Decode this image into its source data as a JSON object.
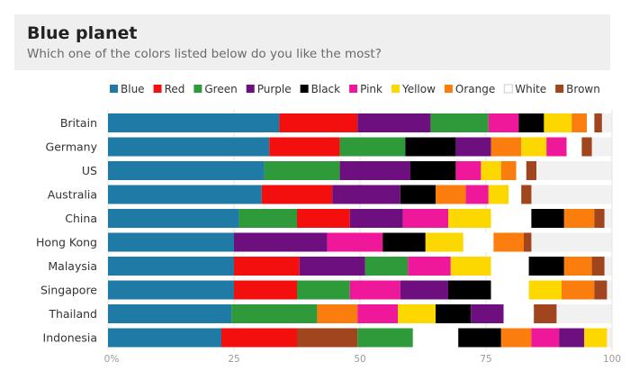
{
  "header": {
    "title": "Blue planet",
    "subtitle": "Which one of the colors listed below do you like the most?"
  },
  "chart_data": {
    "type": "bar",
    "orientation": "horizontal",
    "stacked": true,
    "title": "Blue planet",
    "subtitle": "Which one of the colors listed below do you like the most?",
    "xlabel": "",
    "ylabel": "",
    "xlim": [
      0,
      100
    ],
    "x_ticks": [
      "0%",
      "25",
      "50",
      "75",
      "100"
    ],
    "grid": true,
    "legend_position": "top-left",
    "categories": [
      "Britain",
      "Germany",
      "US",
      "Australia",
      "China",
      "Hong Kong",
      "Malaysia",
      "Singapore",
      "Thailand",
      "Indonesia"
    ],
    "series": [
      {
        "name": "Blue",
        "color": "#1f7ba5",
        "values": [
          34,
          32,
          31,
          30.5,
          26,
          25,
          25,
          25,
          24.5,
          22.5
        ]
      },
      {
        "name": "Red",
        "color": "#f40f0f",
        "values": [
          15.5,
          14,
          0,
          14,
          10.5,
          0,
          13,
          12.5,
          0,
          15
        ]
      },
      {
        "name": "Green",
        "color": "#2f9a3a",
        "values": [
          11.5,
          13,
          15,
          0,
          11.5,
          0,
          8.5,
          10.5,
          17,
          11
        ]
      },
      {
        "name": "Purple",
        "color": "#6d0f7f",
        "values": [
          14.5,
          7,
          14,
          13.5,
          10.5,
          18.5,
          13,
          9.5,
          6.5,
          5
        ]
      },
      {
        "name": "Black",
        "color": "#000000",
        "values": [
          5,
          10,
          9,
          7,
          6.5,
          8.5,
          7,
          8.5,
          7,
          8.5
        ]
      },
      {
        "name": "Pink",
        "color": "#f0189a",
        "values": [
          6,
          4,
          5,
          4.5,
          9,
          11,
          8.5,
          10,
          8,
          5.5
        ]
      },
      {
        "name": "Yellow",
        "color": "#fcd700",
        "values": [
          5.5,
          5,
          4,
          4,
          8.5,
          7.5,
          8,
          6.5,
          7.5,
          4.5
        ]
      },
      {
        "name": "Orange",
        "color": "#fb7d0e",
        "values": [
          3,
          6,
          3,
          6,
          6,
          6,
          5.5,
          6.5,
          8,
          6
        ]
      },
      {
        "name": "White",
        "color": "#ffffff",
        "values": [
          1.5,
          3,
          2,
          2.5,
          8,
          6,
          7.5,
          7.5,
          6,
          9
        ]
      },
      {
        "name": "Brown",
        "color": "#a0451d",
        "values": [
          1.5,
          2,
          2,
          2,
          2,
          1.5,
          2.5,
          2.5,
          4.5,
          12
        ]
      }
    ],
    "segment_order": [
      [
        "Blue",
        "Red",
        "Purple",
        "Green",
        "Pink",
        "Black",
        "Yellow",
        "Orange",
        "White",
        "Brown"
      ],
      [
        "Blue",
        "Red",
        "Green",
        "Black",
        "Purple",
        "Orange",
        "Yellow",
        "Pink",
        "White",
        "Brown"
      ],
      [
        "Blue",
        "Green",
        "Purple",
        "Red",
        "Black",
        "Pink",
        "Yellow",
        "Orange",
        "White",
        "Brown"
      ],
      [
        "Blue",
        "Red",
        "Purple",
        "Green",
        "Black",
        "Orange",
        "Pink",
        "Yellow",
        "White",
        "Brown"
      ],
      [
        "Blue",
        "Green",
        "Red",
        "Purple",
        "Pink",
        "Yellow",
        "White",
        "Black",
        "Orange",
        "Brown"
      ],
      [
        "Blue",
        "Purple",
        "Pink",
        "Black",
        "Red",
        "Yellow",
        "Green",
        "White",
        "Orange",
        "Brown"
      ],
      [
        "Blue",
        "Red",
        "Purple",
        "Green",
        "Pink",
        "Yellow",
        "White",
        "Black",
        "Orange",
        "Brown"
      ],
      [
        "Blue",
        "Red",
        "Green",
        "Pink",
        "Purple",
        "Black",
        "White",
        "Yellow",
        "Orange",
        "Brown"
      ],
      [
        "Blue",
        "Green",
        "Red",
        "Orange",
        "Pink",
        "Yellow",
        "Black",
        "Purple",
        "White",
        "Brown"
      ],
      [
        "Blue",
        "Red",
        "Brown",
        "Green",
        "White",
        "Black",
        "Orange",
        "Pink",
        "Purple",
        "Yellow"
      ]
    ]
  }
}
